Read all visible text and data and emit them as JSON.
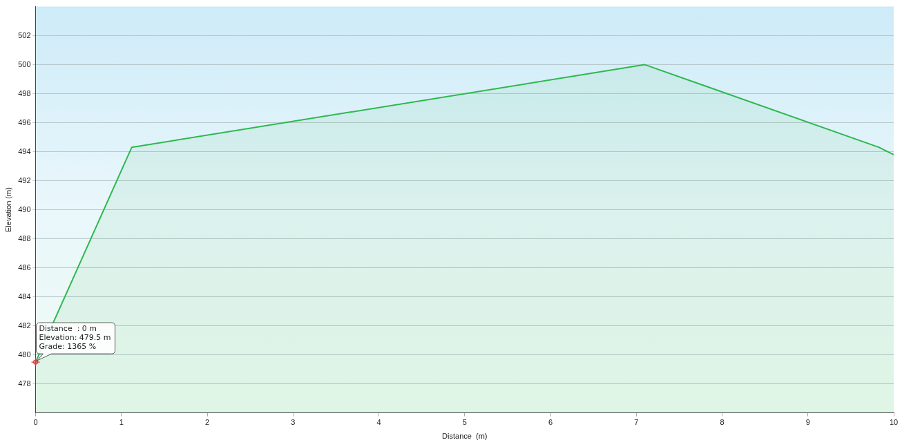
{
  "chart_data": {
    "type": "area",
    "xlabel": "Distance  (m)",
    "ylabel": "Elevation (m)",
    "x": [
      0,
      1.12,
      7.1,
      9.83,
      10
    ],
    "series": [
      {
        "color": "#2db84d",
        "values": [
          479.5,
          494.3,
          500,
          494.3,
          493.8
        ]
      }
    ],
    "xlim": [
      0,
      10
    ],
    "xticks": [
      0,
      1,
      2,
      3,
      4,
      5,
      6,
      7,
      8,
      9,
      10
    ],
    "ylim": [
      476,
      504
    ],
    "yticks": [
      478,
      480,
      482,
      484,
      486,
      488,
      490,
      492,
      494,
      496,
      498,
      500,
      502
    ],
    "grid": "y",
    "legend": false,
    "marker": "none",
    "annotations": [
      {
        "text": "Distance  : 0 m\nElevation: 479.5 m\nGrade: 1365 %",
        "x": 0,
        "y": 479.5
      }
    ]
  }
}
